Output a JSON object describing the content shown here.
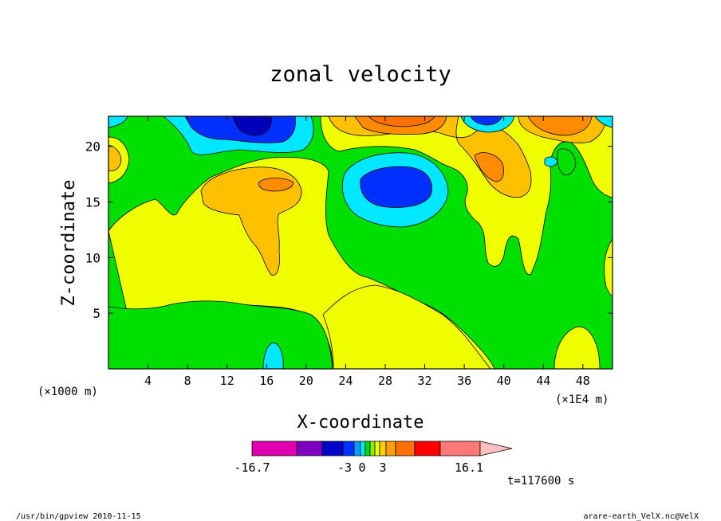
{
  "chart_data": {
    "type": "heatmap",
    "title": "zonal velocity",
    "xlabel": "X-coordinate",
    "ylabel": "Z-coordinate",
    "x_unit_left": "(×1000 m)",
    "x_unit_right": "(×1E4 m)",
    "xlim": [
      0,
      51
    ],
    "ylim": [
      0,
      22.7
    ],
    "x_ticks": [
      "4",
      "8",
      "12",
      "16",
      "20",
      "24",
      "28",
      "32",
      "36",
      "40",
      "44",
      "48"
    ],
    "x_tick_values": [
      4,
      8,
      12,
      16,
      20,
      24,
      28,
      32,
      36,
      40,
      44,
      48
    ],
    "y_ticks": [
      "5",
      "10",
      "15",
      "20"
    ],
    "y_tick_values": [
      5,
      10,
      15,
      20
    ],
    "colorbar": {
      "colors": [
        "#e000b0",
        "#8000c0",
        "#0000c8",
        "#0030ff",
        "#00a0ff",
        "#00e8ff",
        "#00e000",
        "#90f000",
        "#f0ff00",
        "#ffd000",
        "#ffa000",
        "#ff7000",
        "#ff0000",
        "#ff7878",
        "#ffc0c0"
      ],
      "tick_labels": [
        "-16.7",
        "-3",
        "0",
        "3",
        "16.1"
      ],
      "min": -16.7,
      "max": 16.1
    },
    "regions": [
      {
        "level": "green",
        "color": "#00e000"
      },
      {
        "level": "yellow",
        "color": "#f0ff00"
      },
      {
        "level": "light-orange",
        "color": "#ffc000"
      },
      {
        "level": "orange",
        "color": "#ff8c00"
      },
      {
        "level": "cyan",
        "color": "#00e8ff"
      },
      {
        "level": "blue",
        "color": "#0030ff"
      },
      {
        "level": "dark-blue",
        "color": "#0000b8"
      }
    ],
    "legend": "bottom-center",
    "grid": false
  },
  "time_label": "t=117600 s",
  "footer_left": "/usr/bin/gpview   2010-11-15",
  "footer_right": "arare-earth_VelX.nc@VelX"
}
